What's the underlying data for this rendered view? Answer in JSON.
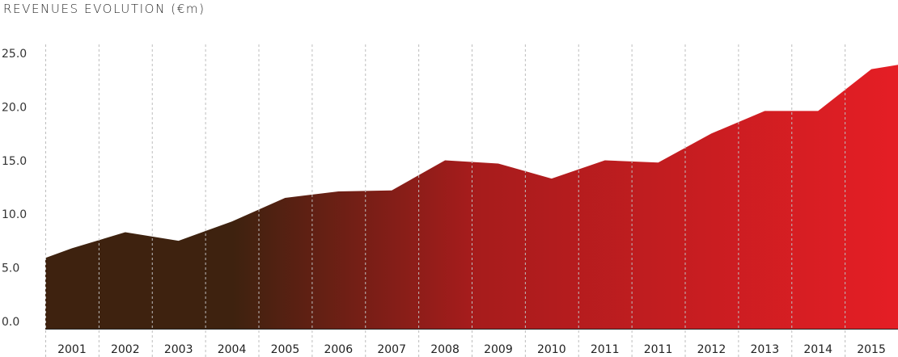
{
  "chart_data": {
    "type": "area",
    "title": "REVENUES EVOLUTION (€m)",
    "xlabel": "",
    "ylabel": "",
    "ylim": [
      0,
      25
    ],
    "yticks": [
      "0.0",
      "5.0",
      "10.0",
      "15.0",
      "20.0",
      "25.0"
    ],
    "categories": [
      "2001",
      "2002",
      "2003",
      "2004",
      "2005",
      "2006",
      "2007",
      "2008",
      "2009",
      "2010",
      "2011",
      "2011",
      "2012",
      "2013",
      "2014",
      "2015"
    ],
    "x": [
      2000.5,
      2001,
      2002,
      2003,
      2004,
      2005,
      2006,
      2007,
      2008,
      2009,
      2010,
      2011,
      2011,
      2012,
      2013,
      2014,
      2015,
      2015.5
    ],
    "values": [
      6.6,
      7.5,
      9.0,
      8.2,
      10.0,
      12.2,
      12.8,
      12.9,
      15.7,
      15.4,
      14.0,
      15.7,
      15.5,
      18.2,
      20.3,
      20.3,
      24.2,
      24.6
    ],
    "colors": {
      "start": "#3e220f",
      "mid": "#a61c1c",
      "end": "#e51e25",
      "grid": "#bdbdbd",
      "axis": "#222222"
    },
    "grid": true,
    "grid_style": "dashed-vertical"
  }
}
